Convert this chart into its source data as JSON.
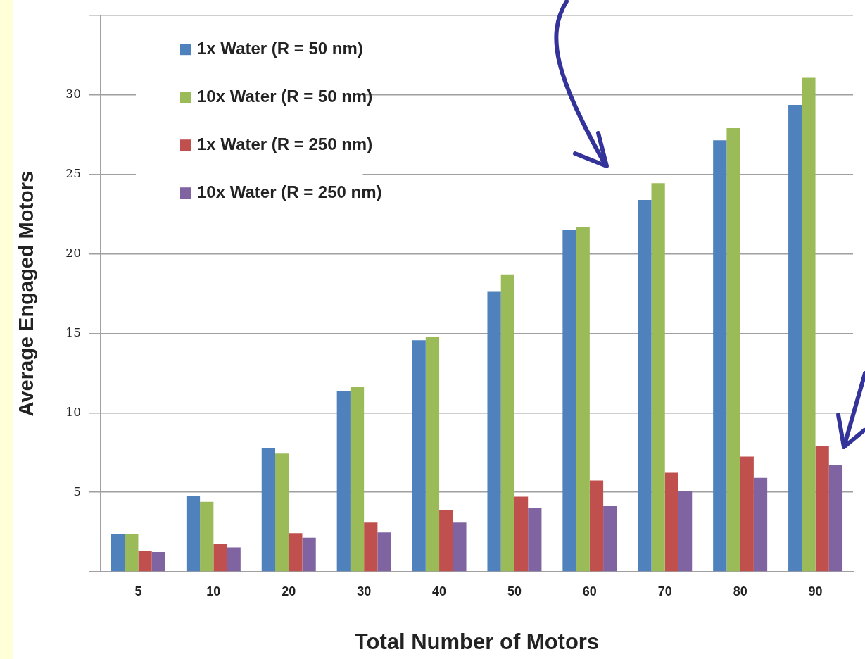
{
  "chart_data": {
    "type": "bar",
    "xlabel": "Total Number of Motors",
    "ylabel": "Average Engaged Motors",
    "categories": [
      "5",
      "10",
      "20",
      "30",
      "40",
      "50",
      "60",
      "70",
      "80",
      "90"
    ],
    "series": [
      {
        "name": "1x Water (R = 50 nm)",
        "color": "#4f81bd",
        "values": [
          2.35,
          4.78,
          7.77,
          11.34,
          14.57,
          17.62,
          21.51,
          23.4,
          27.15,
          29.38
        ]
      },
      {
        "name": "10x Water (R = 50 nm)",
        "color": "#9bbb59",
        "values": [
          2.35,
          4.4,
          7.43,
          11.65,
          14.79,
          18.71,
          21.67,
          24.45,
          27.92,
          31.09
        ]
      },
      {
        "name": "1x Water (R = 250 nm)",
        "color": "#c0504d",
        "values": [
          1.3,
          1.77,
          2.43,
          3.09,
          3.9,
          4.72,
          5.74,
          6.23,
          7.24,
          7.91
        ]
      },
      {
        "name": "10x Water (R = 250 nm)",
        "color": "#8064a2",
        "values": [
          1.24,
          1.53,
          2.14,
          2.47,
          3.09,
          4.01,
          4.17,
          5.07,
          5.9,
          6.71
        ]
      }
    ],
    "ylim": [
      0,
      35
    ],
    "yticks": [
      {
        "value": 0,
        "label": null
      },
      5,
      10,
      15,
      20,
      25,
      30,
      {
        "value": 35,
        "label": null
      }
    ],
    "grid": "y",
    "legend": "top left"
  }
}
